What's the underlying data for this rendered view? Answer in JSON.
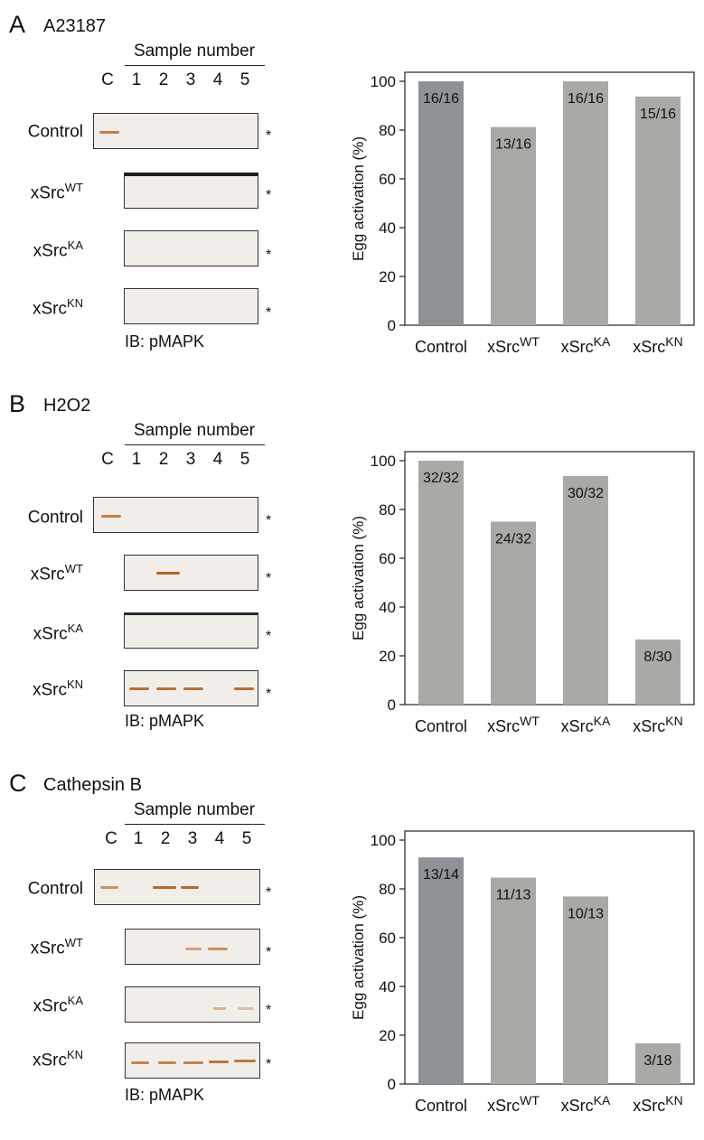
{
  "panels": [
    {
      "letter": "A",
      "condition": "A23187",
      "sample_header": "Sample number",
      "lanes": [
        "C",
        "1",
        "2",
        "3",
        "4",
        "5"
      ],
      "blot_rows": [
        {
          "name": "Control",
          "sup": ""
        },
        {
          "name": "xSrc",
          "sup": "WT"
        },
        {
          "name": "xSrc",
          "sup": "KA"
        },
        {
          "name": "xSrc",
          "sup": "KN"
        }
      ],
      "asterisk": "*",
      "ib_label": "IB: pMAPK"
    },
    {
      "letter": "B",
      "condition": "H2O2",
      "sample_header": "Sample number",
      "lanes": [
        "C",
        "1",
        "2",
        "3",
        "4",
        "5"
      ],
      "blot_rows": [
        {
          "name": "Control",
          "sup": ""
        },
        {
          "name": "xSrc",
          "sup": "WT"
        },
        {
          "name": "xSrc",
          "sup": "KA"
        },
        {
          "name": "xSrc",
          "sup": "KN"
        }
      ],
      "asterisk": "*",
      "ib_label": "IB: pMAPK"
    },
    {
      "letter": "C",
      "condition": "Cathepsin B",
      "sample_header": "Sample number",
      "lanes": [
        "C",
        "1",
        "2",
        "3",
        "4",
        "5"
      ],
      "blot_rows": [
        {
          "name": "Control",
          "sup": ""
        },
        {
          "name": "xSrc",
          "sup": "WT"
        },
        {
          "name": "xSrc",
          "sup": "KA"
        },
        {
          "name": "xSrc",
          "sup": "KN"
        }
      ],
      "asterisk": "*",
      "ib_label": "IB: pMAPK"
    }
  ],
  "chart_data": [
    {
      "type": "bar",
      "panel": "A",
      "categories": [
        {
          "base": "Control",
          "sup": ""
        },
        {
          "base": "xSrc",
          "sup": "WT"
        },
        {
          "base": "xSrc",
          "sup": "KA"
        },
        {
          "base": "xSrc",
          "sup": "KN"
        }
      ],
      "values": [
        100,
        81.25,
        100,
        93.75
      ],
      "bar_labels": [
        "16/16",
        "13/16",
        "16/16",
        "15/16"
      ],
      "ylabel": "Egg activation (%)",
      "ylim": [
        0,
        100
      ],
      "yticks": [
        0,
        20,
        40,
        60,
        80,
        100
      ],
      "colors": [
        "#8e9196",
        "#a9a9a6",
        "#a9a9a6",
        "#a9a9a6"
      ]
    },
    {
      "type": "bar",
      "panel": "B",
      "categories": [
        {
          "base": "Control",
          "sup": ""
        },
        {
          "base": "xSrc",
          "sup": "WT"
        },
        {
          "base": "xSrc",
          "sup": "KA"
        },
        {
          "base": "xSrc",
          "sup": "KN"
        }
      ],
      "values": [
        100,
        75,
        93.75,
        26.7
      ],
      "bar_labels": [
        "32/32",
        "24/32",
        "30/32",
        "8/30"
      ],
      "ylabel": "Egg activation (%)",
      "ylim": [
        0,
        100
      ],
      "yticks": [
        0,
        20,
        40,
        60,
        80,
        100
      ],
      "colors": [
        "#a9a9a6",
        "#a9a9a6",
        "#a9a9a6",
        "#a9a9a6"
      ]
    },
    {
      "type": "bar",
      "panel": "C",
      "categories": [
        {
          "base": "Control",
          "sup": ""
        },
        {
          "base": "xSrc",
          "sup": "WT"
        },
        {
          "base": "xSrc",
          "sup": "KA"
        },
        {
          "base": "xSrc",
          "sup": "KN"
        }
      ],
      "values": [
        92.9,
        84.6,
        76.9,
        16.7
      ],
      "bar_labels": [
        "13/14",
        "11/13",
        "10/13",
        "3/18"
      ],
      "ylabel": "Egg activation (%)",
      "ylim": [
        0,
        100
      ],
      "yticks": [
        0,
        20,
        40,
        60,
        80,
        100
      ],
      "colors": [
        "#8e9196",
        "#a9a9a6",
        "#a9a9a6",
        "#a9a9a6"
      ]
    }
  ]
}
